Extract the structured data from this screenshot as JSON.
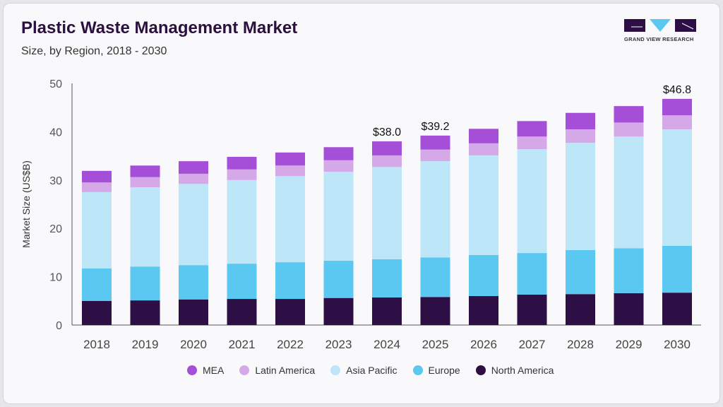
{
  "header": {
    "title": "Plastic Waste Management Market",
    "subtitle": "Size, by Region, 2018 - 2030",
    "logo_text": "GRAND VIEW RESEARCH"
  },
  "chart_data": {
    "type": "bar",
    "stacked": true,
    "title": "Plastic Waste Management Market",
    "subtitle": "Size, by Region, 2018 - 2030",
    "xlabel": "",
    "ylabel": "Market Size (US$B)",
    "ylim": [
      0,
      50
    ],
    "yticks": [
      "0",
      "10",
      "20",
      "30",
      "40",
      "50"
    ],
    "grid": false,
    "legend_position": "bottom",
    "categories": [
      "2018",
      "2019",
      "2020",
      "2021",
      "2022",
      "2023",
      "2024",
      "2025",
      "2026",
      "2027",
      "2028",
      "2029",
      "2030"
    ],
    "series": [
      {
        "name": "North America",
        "color": "#2d0f45",
        "values": [
          5.0,
          5.1,
          5.3,
          5.4,
          5.4,
          5.6,
          5.7,
          5.8,
          6.0,
          6.3,
          6.4,
          6.6,
          6.7
        ]
      },
      {
        "name": "Europe",
        "color": "#5bc8f2",
        "values": [
          6.7,
          7.0,
          7.1,
          7.3,
          7.6,
          7.7,
          7.9,
          8.2,
          8.5,
          8.6,
          9.1,
          9.3,
          9.7
        ]
      },
      {
        "name": "Asia Pacific",
        "color": "#bde6f8",
        "values": [
          15.8,
          16.4,
          16.8,
          17.3,
          17.8,
          18.4,
          19.1,
          19.9,
          20.6,
          21.5,
          22.2,
          23.1,
          24.1
        ]
      },
      {
        "name": "Latin America",
        "color": "#d5a8e8",
        "values": [
          2.0,
          2.1,
          2.1,
          2.2,
          2.2,
          2.4,
          2.4,
          2.4,
          2.5,
          2.6,
          2.8,
          2.9,
          2.9
        ]
      },
      {
        "name": "MEA",
        "color": "#a54fd8",
        "values": [
          2.4,
          2.4,
          2.6,
          2.6,
          2.7,
          2.7,
          2.9,
          2.9,
          3.0,
          3.2,
          3.4,
          3.4,
          3.4
        ]
      }
    ],
    "legend_order": [
      "MEA",
      "Latin America",
      "Asia Pacific",
      "Europe",
      "North America"
    ],
    "annotations": [
      {
        "category": "2024",
        "text": "$38.0"
      },
      {
        "category": "2025",
        "text": "$39.2"
      },
      {
        "category": "2030",
        "text": "$46.8"
      }
    ]
  }
}
